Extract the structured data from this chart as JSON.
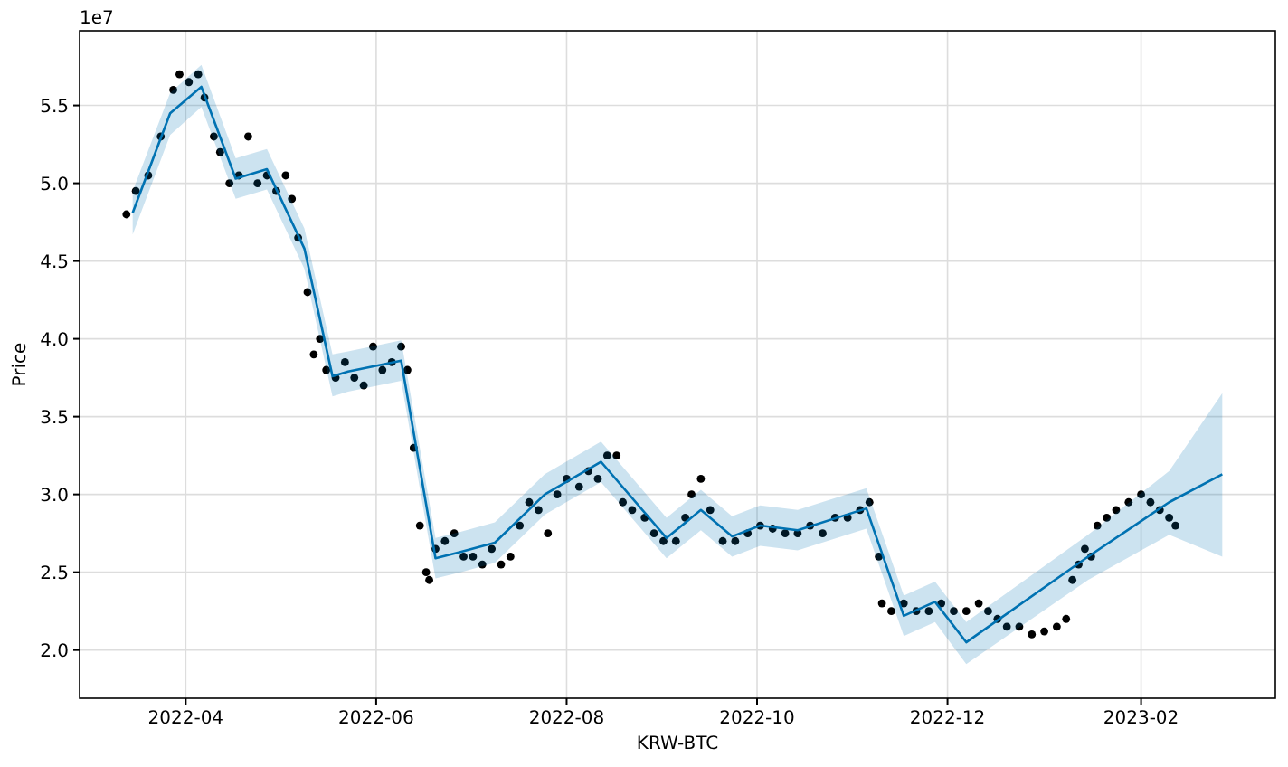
{
  "chart_data": {
    "type": "scatter",
    "xlabel": "KRW-BTC",
    "ylabel": "Price",
    "annotations": [
      "1e7"
    ],
    "xlim": [
      "2022-02-26",
      "2023-03-16"
    ],
    "xticks": [
      "2022-04",
      "2022-06",
      "2022-08",
      "2022-10",
      "2022-12",
      "2023-02"
    ],
    "ylim": [
      1.69,
      5.98
    ],
    "yticks": [
      {
        "value": 2,
        "label": "2.0"
      },
      {
        "value": 2.5,
        "label": "2.5"
      },
      {
        "value": 3,
        "label": "3.0"
      },
      {
        "value": 3.5,
        "label": "3.5"
      },
      {
        "value": 4,
        "label": "4.0"
      },
      {
        "value": 4.5,
        "label": "4.5"
      },
      {
        "value": 5,
        "label": "5.0"
      },
      {
        "value": 5.5,
        "label": "5.5"
      }
    ],
    "grid": true,
    "series": [
      {
        "marker": "circle",
        "color": "#000000",
        "x": [
          "2022-03-13",
          "2022-03-16",
          "2022-03-20",
          "2022-03-24",
          "2022-03-28",
          "2022-03-30",
          "2022-04-02",
          "2022-04-05",
          "2022-04-07",
          "2022-04-10",
          "2022-04-12",
          "2022-04-15",
          "2022-04-18",
          "2022-04-21",
          "2022-04-24",
          "2022-04-27",
          "2022-04-30",
          "2022-05-03",
          "2022-05-05",
          "2022-05-07",
          "2022-05-10",
          "2022-05-12",
          "2022-05-14",
          "2022-05-16",
          "2022-05-19",
          "2022-05-22",
          "2022-05-25",
          "2022-05-28",
          "2022-05-31",
          "2022-06-03",
          "2022-06-06",
          "2022-06-09",
          "2022-06-11",
          "2022-06-13",
          "2022-06-15",
          "2022-06-17",
          "2022-06-18",
          "2022-06-20",
          "2022-06-23",
          "2022-06-26",
          "2022-06-29",
          "2022-07-02",
          "2022-07-05",
          "2022-07-08",
          "2022-07-11",
          "2022-07-14",
          "2022-07-17",
          "2022-07-20",
          "2022-07-23",
          "2022-07-26",
          "2022-07-29",
          "2022-08-01",
          "2022-08-05",
          "2022-08-08",
          "2022-08-11",
          "2022-08-14",
          "2022-08-17",
          "2022-08-19",
          "2022-08-22",
          "2022-08-26",
          "2022-08-29",
          "2022-09-01",
          "2022-09-05",
          "2022-09-08",
          "2022-09-10",
          "2022-09-13",
          "2022-09-16",
          "2022-09-20",
          "2022-09-24",
          "2022-09-28",
          "2022-10-02",
          "2022-10-06",
          "2022-10-10",
          "2022-10-14",
          "2022-10-18",
          "2022-10-22",
          "2022-10-26",
          "2022-10-30",
          "2022-11-03",
          "2022-11-06",
          "2022-11-09",
          "2022-11-10",
          "2022-11-13",
          "2022-11-17",
          "2022-11-21",
          "2022-11-25",
          "2022-11-29",
          "2022-12-03",
          "2022-12-07",
          "2022-12-11",
          "2022-12-14",
          "2022-12-17",
          "2022-12-20",
          "2022-12-24",
          "2022-12-28",
          "2023-01-01",
          "2023-01-05",
          "2023-01-08",
          "2023-01-10",
          "2023-01-12",
          "2023-01-14",
          "2023-01-16",
          "2023-01-18",
          "2023-01-21",
          "2023-01-24",
          "2023-01-28",
          "2023-02-01",
          "2023-02-04",
          "2023-02-07",
          "2023-02-10",
          "2023-02-12"
        ],
        "values": [
          4.8,
          4.95,
          5.05,
          5.3,
          5.6,
          5.7,
          5.65,
          5.7,
          5.55,
          5.3,
          5.2,
          5.0,
          5.05,
          5.3,
          5.0,
          5.05,
          4.95,
          5.05,
          4.9,
          4.65,
          4.3,
          3.9,
          4.0,
          3.8,
          3.75,
          3.85,
          3.75,
          3.7,
          3.95,
          3.8,
          3.85,
          3.95,
          3.8,
          3.3,
          2.8,
          2.5,
          2.45,
          2.65,
          2.7,
          2.75,
          2.6,
          2.6,
          2.55,
          2.65,
          2.55,
          2.6,
          2.8,
          2.95,
          2.9,
          2.75,
          3.0,
          3.1,
          3.05,
          3.15,
          3.1,
          3.25,
          3.25,
          2.95,
          2.9,
          2.85,
          2.75,
          2.7,
          2.7,
          2.85,
          3.0,
          3.1,
          2.9,
          2.7,
          2.7,
          2.75,
          2.8,
          2.78,
          2.75,
          2.75,
          2.8,
          2.75,
          2.85,
          2.85,
          2.9,
          2.95,
          2.6,
          2.3,
          2.25,
          2.3,
          2.25,
          2.25,
          2.3,
          2.25,
          2.25,
          2.3,
          2.25,
          2.2,
          2.15,
          2.15,
          2.1,
          2.12,
          2.15,
          2.2,
          2.45,
          2.55,
          2.65,
          2.6,
          2.8,
          2.85,
          2.9,
          2.95,
          3.0,
          2.95,
          2.9,
          2.85,
          2.8
        ]
      },
      {
        "type": "line",
        "color": "#0072b2",
        "x": [
          "2022-03-15",
          "2022-03-27",
          "2022-04-06",
          "2022-04-17",
          "2022-04-27",
          "2022-05-09",
          "2022-05-18",
          "2022-05-23",
          "2022-06-09",
          "2022-06-20",
          "2022-06-28",
          "2022-07-09",
          "2022-07-25",
          "2022-08-12",
          "2022-09-02",
          "2022-09-13",
          "2022-09-23",
          "2022-10-02",
          "2022-10-14",
          "2022-11-05",
          "2022-11-17",
          "2022-11-27",
          "2022-12-07",
          "2023-01-15",
          "2023-02-10",
          "2023-02-27"
        ],
        "values": [
          4.81,
          5.45,
          5.62,
          5.03,
          5.09,
          4.58,
          3.76,
          3.79,
          3.86,
          2.59,
          2.63,
          2.69,
          3.0,
          3.21,
          2.72,
          2.9,
          2.73,
          2.8,
          2.77,
          2.91,
          2.22,
          2.31,
          2.05,
          2.6,
          2.95,
          3.13
        ],
        "lower": [
          4.67,
          5.31,
          5.49,
          4.9,
          4.96,
          4.45,
          3.63,
          3.66,
          3.73,
          2.46,
          2.5,
          2.56,
          2.87,
          3.08,
          2.59,
          2.77,
          2.6,
          2.67,
          2.64,
          2.78,
          2.09,
          2.18,
          1.91,
          2.45,
          2.74,
          2.6
        ],
        "upper": [
          4.95,
          5.58,
          5.76,
          5.16,
          5.22,
          4.71,
          3.9,
          3.92,
          3.99,
          2.72,
          2.76,
          2.82,
          3.13,
          3.34,
          2.85,
          3.03,
          2.86,
          2.93,
          2.9,
          3.04,
          2.35,
          2.44,
          2.18,
          2.74,
          3.15,
          3.65
        ]
      }
    ]
  }
}
